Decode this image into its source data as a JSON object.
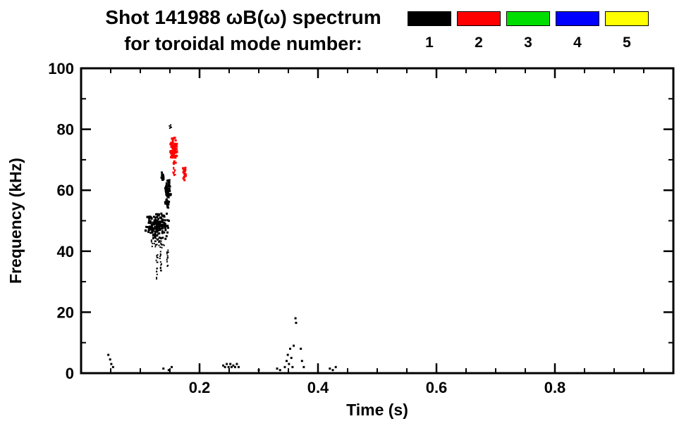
{
  "chart_data": {
    "type": "scatter",
    "title": "Shot 141988 ωB(ω) spectrum",
    "subtitle": "for toroidal mode number:",
    "xlabel": "Time (s)",
    "ylabel": "Frequency (kHz)",
    "xlim": [
      0,
      1.0
    ],
    "ylim": [
      0,
      100
    ],
    "x_major_ticks": [
      0.2,
      0.4,
      0.6,
      0.8
    ],
    "x_major_labels": [
      "0.2",
      "0.4",
      "0.6",
      "0.8"
    ],
    "x_minor_step": 0.05,
    "y_major_ticks": [
      0,
      20,
      40,
      60,
      80,
      100
    ],
    "y_major_labels": [
      "0",
      "20",
      "40",
      "60",
      "80",
      "100"
    ],
    "y_minor_step": 10,
    "grid": false,
    "legend_position": "top-right",
    "series": [
      {
        "name": "1",
        "mode": 1,
        "color": "#000000",
        "clusters": [
          {
            "t": [
              0.106,
              0.15
            ],
            "f": [
              43.5,
              53.0
            ],
            "n": 150,
            "size": 3
          },
          {
            "t": [
              0.115,
              0.146
            ],
            "f": [
              41.0,
              44.5
            ],
            "n": 30,
            "size": 2
          },
          {
            "t": [
              0.126,
              0.13
            ],
            "f": [
              30.0,
              43.0
            ],
            "n": 16,
            "size": 2
          },
          {
            "t": [
              0.133,
              0.136
            ],
            "f": [
              29.0,
              41.0
            ],
            "n": 14,
            "size": 2
          },
          {
            "t": [
              0.144,
              0.148
            ],
            "f": [
              34.0,
              42.0
            ],
            "n": 12,
            "size": 2
          },
          {
            "t": [
              0.141,
              0.152
            ],
            "f": [
              53.0,
              65.0
            ],
            "n": 70,
            "size": 3
          },
          {
            "t": [
              0.134,
              0.141
            ],
            "f": [
              62.5,
              66.5
            ],
            "n": 16,
            "size": 3
          },
          {
            "t": [
              0.149,
              0.153
            ],
            "f": [
              80.0,
              83.0
            ],
            "n": 5,
            "size": 2
          }
        ],
        "points": [
          [
            0.046,
            6
          ],
          [
            0.049,
            4.5
          ],
          [
            0.051,
            3
          ],
          [
            0.054,
            2
          ],
          [
            0.139,
            1.5
          ],
          [
            0.148,
            1
          ],
          [
            0.153,
            2
          ],
          [
            0.24,
            2.5
          ],
          [
            0.243,
            2
          ],
          [
            0.246,
            3
          ],
          [
            0.249,
            2
          ],
          [
            0.252,
            3
          ],
          [
            0.254,
            2
          ],
          [
            0.257,
            2.5
          ],
          [
            0.26,
            2
          ],
          [
            0.263,
            3
          ],
          [
            0.266,
            2
          ],
          [
            0.3,
            1
          ],
          [
            0.331,
            1.5
          ],
          [
            0.336,
            1
          ],
          [
            0.344,
            2
          ],
          [
            0.347,
            4
          ],
          [
            0.349,
            6
          ],
          [
            0.351,
            3
          ],
          [
            0.353,
            8
          ],
          [
            0.355,
            5
          ],
          [
            0.357,
            2
          ],
          [
            0.359,
            9
          ],
          [
            0.362,
            18
          ],
          [
            0.363,
            16.5
          ],
          [
            0.371,
            8
          ],
          [
            0.373,
            4
          ],
          [
            0.376,
            2
          ],
          [
            0.42,
            1.5
          ],
          [
            0.425,
            1
          ],
          [
            0.43,
            2
          ]
        ]
      },
      {
        "name": "2",
        "mode": 2,
        "color": "#ff0000",
        "clusters": [
          {
            "t": [
              0.15,
              0.163
            ],
            "f": [
              68.0,
              79.0
            ],
            "n": 80,
            "size": 3
          },
          {
            "t": [
              0.154,
              0.16
            ],
            "f": [
              64.0,
              68.0
            ],
            "n": 12,
            "size": 2
          },
          {
            "t": [
              0.172,
              0.178
            ],
            "f": [
              62.0,
              68.5
            ],
            "n": 22,
            "size": 3
          }
        ],
        "points": []
      },
      {
        "name": "3",
        "mode": 3,
        "color": "#00dd00",
        "clusters": [],
        "points": []
      },
      {
        "name": "4",
        "mode": 4,
        "color": "#0000ff",
        "clusters": [],
        "points": []
      },
      {
        "name": "5",
        "mode": 5,
        "color": "#ffff00",
        "clusters": [],
        "points": []
      }
    ]
  }
}
